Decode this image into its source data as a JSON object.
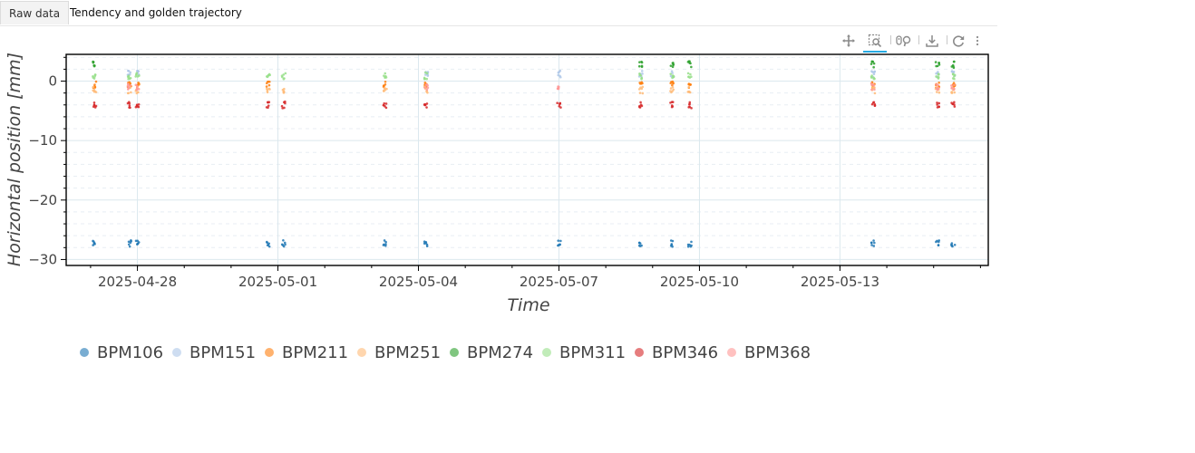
{
  "tabs": [
    {
      "label": "Raw data",
      "active": true
    },
    {
      "label": "Tendency and golden trajectory",
      "active": false
    }
  ],
  "toolbar": {
    "tools": [
      {
        "name": "pan-icon",
        "label": "Pan"
      },
      {
        "name": "box-zoom-icon",
        "label": "Box Zoom",
        "active": true
      },
      {
        "name": "wheel-zoom-icon",
        "label": "Wheel Zoom"
      },
      {
        "name": "save-icon",
        "label": "Save"
      },
      {
        "name": "reset-icon",
        "label": "Reset"
      },
      {
        "name": "more-icon",
        "label": "More"
      }
    ]
  },
  "chart_data": {
    "type": "scatter",
    "title": "",
    "xlabel": "Time",
    "ylabel": "Horizontal position [mm]",
    "x_ticks": [
      "2025-04-28",
      "2025-05-01",
      "2025-05-04",
      "2025-05-07",
      "2025-05-10",
      "2025-05-13"
    ],
    "x_range": [
      "2025-04-26T11:30",
      "2025-05-16T04:00"
    ],
    "y_ticks": [
      0,
      -10,
      -20,
      -30
    ],
    "ylim": [
      -31,
      4.5
    ],
    "grid": true,
    "legend_position": "bottom",
    "series": [
      {
        "name": "BPM106",
        "color": "#1f77b4",
        "y": -27.3
      },
      {
        "name": "BPM151",
        "color": "#aec7e8",
        "y": 1.2
      },
      {
        "name": "BPM211",
        "color": "#ff7f0e",
        "y": -0.6
      },
      {
        "name": "BPM251",
        "color": "#ffbb78",
        "y": -1.5
      },
      {
        "name": "BPM274",
        "color": "#2ca02c",
        "y": 2.8
      },
      {
        "name": "BPM311",
        "color": "#98df8a",
        "y": 0.9
      },
      {
        "name": "BPM346",
        "color": "#d62728",
        "y": -4.0
      },
      {
        "name": "BPM368",
        "color": "#ff9896",
        "y": -0.9
      }
    ],
    "sessions": [
      {
        "time": "2025-04-27T02:00",
        "series": [
          "BPM106",
          "BPM211",
          "BPM251",
          "BPM274",
          "BPM311",
          "BPM346"
        ]
      },
      {
        "time": "2025-04-27T20:00",
        "series": [
          "BPM106",
          "BPM151",
          "BPM211",
          "BPM251",
          "BPM311",
          "BPM346",
          "BPM368"
        ]
      },
      {
        "time": "2025-04-28T00:00",
        "series": [
          "BPM106",
          "BPM151",
          "BPM211",
          "BPM251",
          "BPM311",
          "BPM346",
          "BPM368"
        ]
      },
      {
        "time": "2025-04-30T19:00",
        "series": [
          "BPM106",
          "BPM211",
          "BPM251",
          "BPM311",
          "BPM346"
        ]
      },
      {
        "time": "2025-05-01T03:00",
        "series": [
          "BPM106",
          "BPM251",
          "BPM311",
          "BPM346"
        ]
      },
      {
        "time": "2025-05-03T07:00",
        "series": [
          "BPM106",
          "BPM211",
          "BPM251",
          "BPM311",
          "BPM346"
        ]
      },
      {
        "time": "2025-05-04T04:00",
        "series": [
          "BPM106",
          "BPM151",
          "BPM211",
          "BPM251",
          "BPM311",
          "BPM346",
          "BPM368"
        ]
      },
      {
        "time": "2025-05-07T00:00",
        "series": [
          "BPM106",
          "BPM151",
          "BPM346",
          "BPM368"
        ]
      },
      {
        "time": "2025-05-08T18:00",
        "series": [
          "BPM106",
          "BPM151",
          "BPM211",
          "BPM251",
          "BPM274",
          "BPM311",
          "BPM346"
        ]
      },
      {
        "time": "2025-05-09T10:00",
        "series": [
          "BPM106",
          "BPM151",
          "BPM211",
          "BPM251",
          "BPM274",
          "BPM311",
          "BPM346"
        ]
      },
      {
        "time": "2025-05-09T19:00",
        "series": [
          "BPM106",
          "BPM211",
          "BPM251",
          "BPM274",
          "BPM311",
          "BPM346"
        ]
      },
      {
        "time": "2025-05-13T17:00",
        "series": [
          "BPM106",
          "BPM151",
          "BPM211",
          "BPM251",
          "BPM274",
          "BPM311",
          "BPM346",
          "BPM368"
        ]
      },
      {
        "time": "2025-05-15T02:00",
        "series": [
          "BPM106",
          "BPM151",
          "BPM211",
          "BPM251",
          "BPM274",
          "BPM311",
          "BPM346",
          "BPM368"
        ]
      },
      {
        "time": "2025-05-15T10:00",
        "series": [
          "BPM106",
          "BPM151",
          "BPM211",
          "BPM251",
          "BPM274",
          "BPM311",
          "BPM346",
          "BPM368"
        ]
      }
    ]
  }
}
